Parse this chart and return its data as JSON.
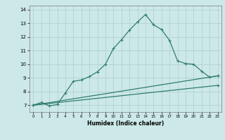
{
  "xlabel": "Humidex (Indice chaleur)",
  "ylabel": "",
  "background_color": "#cde8e8",
  "grid_color": "#aacece",
  "line_color": "#2e7d6e",
  "xlim": [
    -0.5,
    23.5
  ],
  "ylim": [
    6.5,
    14.3
  ],
  "xticks": [
    0,
    1,
    2,
    3,
    4,
    5,
    6,
    7,
    8,
    9,
    10,
    11,
    12,
    13,
    14,
    15,
    16,
    17,
    18,
    19,
    20,
    21,
    22,
    23
  ],
  "yticks": [
    7,
    8,
    9,
    10,
    11,
    12,
    13,
    14
  ],
  "line1_x": [
    0,
    1,
    2,
    3,
    4,
    5,
    6,
    7,
    8,
    9,
    10,
    11,
    12,
    13,
    14,
    15,
    16,
    17,
    18,
    19,
    20,
    21,
    22,
    23
  ],
  "line1_y": [
    7.0,
    7.2,
    6.95,
    7.05,
    7.9,
    8.75,
    8.85,
    9.1,
    9.45,
    10.0,
    11.15,
    11.8,
    12.5,
    13.1,
    13.65,
    12.9,
    12.55,
    11.75,
    10.25,
    10.05,
    10.0,
    9.5,
    9.05,
    9.15
  ],
  "line2_x": [
    0,
    23
  ],
  "line2_y": [
    7.0,
    9.15
  ],
  "line3_x": [
    0,
    23
  ],
  "line3_y": [
    7.0,
    8.45
  ]
}
